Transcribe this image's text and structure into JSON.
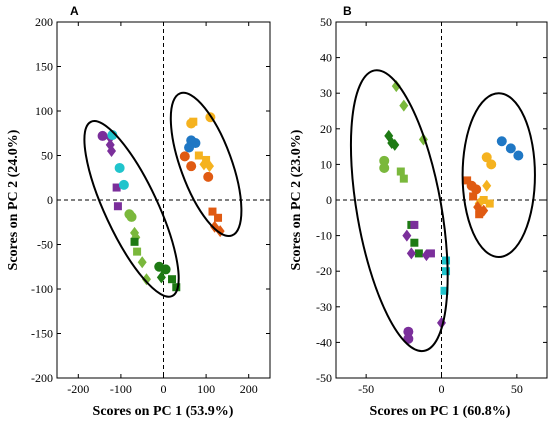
{
  "colors": {
    "blue": "#1f77c4",
    "yellow": "#f5b21f",
    "orange": "#e05a12",
    "purple": "#7b2f9b",
    "cyan": "#20c4cc",
    "lightgreen": "#7ab83c",
    "darkgreen": "#1e7a14"
  },
  "chart_data": [
    {
      "type": "scatter",
      "panel": "A",
      "title": "",
      "xlabel": "Scores on PC 1 (53.9%)",
      "ylabel": "Scores on PC 2 (24.0%)",
      "xlim": [
        -250,
        250
      ],
      "ylim": [
        -200,
        200
      ],
      "xticks": [
        -200,
        -100,
        0,
        100,
        200
      ],
      "yticks": [
        -200,
        -150,
        -100,
        -50,
        0,
        50,
        100,
        150,
        200
      ],
      "zero_lines": true,
      "ellipses": [
        {
          "cx": -75,
          "cy": -10,
          "rx": 62,
          "ry": 108,
          "angle": 25
        },
        {
          "cx": 100,
          "cy": 40,
          "rx": 60,
          "ry": 85,
          "angle": 20
        }
      ],
      "points": [
        {
          "x": 75,
          "y": 64,
          "shape": "circle",
          "color": "blue"
        },
        {
          "x": 65,
          "y": 67,
          "shape": "circle",
          "color": "blue"
        },
        {
          "x": 60,
          "y": 59,
          "shape": "circle",
          "color": "blue"
        },
        {
          "x": 110,
          "y": 93,
          "shape": "circle",
          "color": "yellow"
        },
        {
          "x": 65,
          "y": 86,
          "shape": "circle",
          "color": "yellow"
        },
        {
          "x": 70,
          "y": 88,
          "shape": "square",
          "color": "yellow"
        },
        {
          "x": 83,
          "y": 50,
          "shape": "square",
          "color": "yellow"
        },
        {
          "x": 100,
          "y": 45,
          "shape": "square",
          "color": "yellow"
        },
        {
          "x": 95,
          "y": 40,
          "shape": "diamond",
          "color": "yellow"
        },
        {
          "x": 108,
          "y": 38,
          "shape": "diamond",
          "color": "yellow"
        },
        {
          "x": 50,
          "y": 49,
          "shape": "circle",
          "color": "orange"
        },
        {
          "x": 65,
          "y": 38,
          "shape": "circle",
          "color": "orange"
        },
        {
          "x": 105,
          "y": 26,
          "shape": "circle",
          "color": "orange"
        },
        {
          "x": 115,
          "y": -13,
          "shape": "square",
          "color": "orange"
        },
        {
          "x": 128,
          "y": -20,
          "shape": "square",
          "color": "orange"
        },
        {
          "x": 120,
          "y": -30,
          "shape": "diamond",
          "color": "orange"
        },
        {
          "x": 133,
          "y": -35,
          "shape": "diamond",
          "color": "orange"
        },
        {
          "x": -143,
          "y": 72,
          "shape": "circle",
          "color": "purple"
        },
        {
          "x": -125,
          "y": 70,
          "shape": "diamond",
          "color": "purple"
        },
        {
          "x": -125,
          "y": 62,
          "shape": "diamond",
          "color": "purple"
        },
        {
          "x": -122,
          "y": 55,
          "shape": "diamond",
          "color": "purple"
        },
        {
          "x": -110,
          "y": 14,
          "shape": "square",
          "color": "purple"
        },
        {
          "x": -107,
          "y": -7,
          "shape": "square",
          "color": "purple"
        },
        {
          "x": -120,
          "y": 73,
          "shape": "circle",
          "color": "cyan"
        },
        {
          "x": -103,
          "y": 36,
          "shape": "circle",
          "color": "cyan"
        },
        {
          "x": -93,
          "y": 17,
          "shape": "circle",
          "color": "cyan"
        },
        {
          "x": -80,
          "y": -16,
          "shape": "circle",
          "color": "lightgreen"
        },
        {
          "x": -75,
          "y": -19,
          "shape": "circle",
          "color": "lightgreen"
        },
        {
          "x": -68,
          "y": -37,
          "shape": "diamond",
          "color": "lightgreen"
        },
        {
          "x": -65,
          "y": -42,
          "shape": "diamond",
          "color": "lightgreen"
        },
        {
          "x": -62,
          "y": -58,
          "shape": "square",
          "color": "lightgreen"
        },
        {
          "x": -50,
          "y": -70,
          "shape": "diamond",
          "color": "lightgreen"
        },
        {
          "x": -40,
          "y": -89,
          "shape": "diamond",
          "color": "lightgreen"
        },
        {
          "x": -68,
          "y": -47,
          "shape": "square",
          "color": "darkgreen"
        },
        {
          "x": -10,
          "y": -75,
          "shape": "circle",
          "color": "darkgreen"
        },
        {
          "x": 5,
          "y": -78,
          "shape": "circle",
          "color": "darkgreen"
        },
        {
          "x": -5,
          "y": -87,
          "shape": "diamond",
          "color": "darkgreen"
        },
        {
          "x": 20,
          "y": -89,
          "shape": "square",
          "color": "darkgreen"
        },
        {
          "x": 30,
          "y": -98,
          "shape": "square",
          "color": "darkgreen"
        }
      ]
    },
    {
      "type": "scatter",
      "panel": "B",
      "title": "",
      "xlabel": "Scores on PC 1 (60.8%)",
      "ylabel": "Scores on PC 2 (23.0%)",
      "xlim": [
        -70,
        70
      ],
      "ylim": [
        -50,
        50
      ],
      "xticks": [
        -50,
        0,
        50
      ],
      "yticks": [
        -50,
        -40,
        -30,
        -20,
        -10,
        0,
        10,
        20,
        30,
        40,
        50
      ],
      "zero_lines": true,
      "ellipses": [
        {
          "cx": -28,
          "cy": -3,
          "rx": 28,
          "ry": 40,
          "angle": 10
        },
        {
          "cx": 38,
          "cy": 7,
          "rx": 24,
          "ry": 23,
          "angle": 0
        }
      ],
      "points": [
        {
          "x": 40,
          "y": 16.5,
          "shape": "circle",
          "color": "blue"
        },
        {
          "x": 46,
          "y": 14.5,
          "shape": "circle",
          "color": "blue"
        },
        {
          "x": 51,
          "y": 12.5,
          "shape": "circle",
          "color": "blue"
        },
        {
          "x": 30,
          "y": 12,
          "shape": "circle",
          "color": "yellow"
        },
        {
          "x": 33,
          "y": 10,
          "shape": "circle",
          "color": "yellow"
        },
        {
          "x": 30,
          "y": 4,
          "shape": "diamond",
          "color": "yellow"
        },
        {
          "x": 28,
          "y": 0,
          "shape": "square",
          "color": "yellow"
        },
        {
          "x": 32,
          "y": -1,
          "shape": "square",
          "color": "yellow"
        },
        {
          "x": 25,
          "y": -1,
          "shape": "diamond",
          "color": "yellow"
        },
        {
          "x": 17,
          "y": 5.5,
          "shape": "square",
          "color": "orange"
        },
        {
          "x": 20,
          "y": 4,
          "shape": "circle",
          "color": "orange"
        },
        {
          "x": 23,
          "y": 3,
          "shape": "circle",
          "color": "orange"
        },
        {
          "x": 21,
          "y": 1,
          "shape": "square",
          "color": "orange"
        },
        {
          "x": 24,
          "y": -2,
          "shape": "diamond",
          "color": "orange"
        },
        {
          "x": 25,
          "y": -4,
          "shape": "square",
          "color": "orange"
        },
        {
          "x": 28,
          "y": -3,
          "shape": "diamond",
          "color": "orange"
        },
        {
          "x": -38,
          "y": 11,
          "shape": "circle",
          "color": "lightgreen"
        },
        {
          "x": -38,
          "y": 9,
          "shape": "circle",
          "color": "lightgreen"
        },
        {
          "x": -30,
          "y": 32,
          "shape": "diamond",
          "color": "lightgreen"
        },
        {
          "x": -25,
          "y": 26.5,
          "shape": "diamond",
          "color": "lightgreen"
        },
        {
          "x": -27,
          "y": 8,
          "shape": "square",
          "color": "lightgreen"
        },
        {
          "x": -25,
          "y": 6,
          "shape": "square",
          "color": "lightgreen"
        },
        {
          "x": -12,
          "y": 17,
          "shape": "diamond",
          "color": "lightgreen"
        },
        {
          "x": -35,
          "y": 18,
          "shape": "diamond",
          "color": "darkgreen"
        },
        {
          "x": -33,
          "y": 16,
          "shape": "diamond",
          "color": "darkgreen"
        },
        {
          "x": -31,
          "y": 15.5,
          "shape": "diamond",
          "color": "darkgreen"
        },
        {
          "x": -20,
          "y": -7,
          "shape": "square",
          "color": "darkgreen"
        },
        {
          "x": -18,
          "y": -12,
          "shape": "square",
          "color": "darkgreen"
        },
        {
          "x": -15,
          "y": -15,
          "shape": "square",
          "color": "darkgreen"
        },
        {
          "x": -18,
          "y": -7,
          "shape": "square",
          "color": "purple"
        },
        {
          "x": -23,
          "y": -10,
          "shape": "diamond",
          "color": "purple"
        },
        {
          "x": -20,
          "y": -15,
          "shape": "diamond",
          "color": "purple"
        },
        {
          "x": -10,
          "y": -15.5,
          "shape": "diamond",
          "color": "purple"
        },
        {
          "x": -7,
          "y": -15,
          "shape": "square",
          "color": "purple"
        },
        {
          "x": -22,
          "y": -37,
          "shape": "circle",
          "color": "purple"
        },
        {
          "x": -22,
          "y": -39,
          "shape": "circle",
          "color": "purple"
        },
        {
          "x": 0,
          "y": -34.5,
          "shape": "diamond",
          "color": "purple"
        },
        {
          "x": 3,
          "y": -17,
          "shape": "square",
          "color": "cyan"
        },
        {
          "x": 3,
          "y": -20,
          "shape": "square",
          "color": "cyan"
        },
        {
          "x": 2,
          "y": -25.5,
          "shape": "square",
          "color": "cyan"
        }
      ]
    }
  ]
}
